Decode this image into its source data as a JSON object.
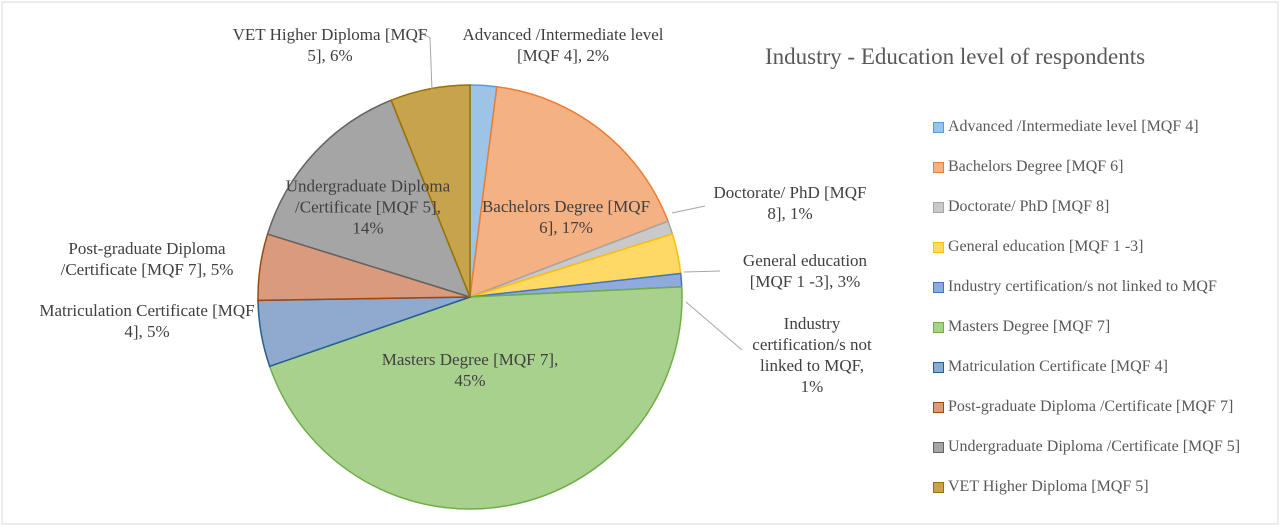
{
  "chart_data": {
    "type": "pie",
    "title": "Industry - Education level of respondents",
    "categories": [
      "Advanced /Intermediate level [MQF 4]",
      "Bachelors Degree [MQF 6]",
      "Doctorate/ PhD [MQF 8]",
      "General education [MQF 1 -3]",
      "Industry certification/s not linked to MQF",
      "Masters  Degree [MQF 7]",
      "Matriculation Certificate [MQF 4]",
      "Post-graduate Diploma /Certificate [MQF 7]",
      "Undergraduate Diploma /Certificate [MQF 5]",
      "VET Higher Diploma [MQF 5]"
    ],
    "values": [
      2,
      17,
      1,
      3,
      1,
      45,
      5,
      5,
      14,
      6
    ],
    "value_labels": [
      "Advanced /Intermediate level [MQF 4], 2%",
      "Bachelors Degree [MQF 6], 17%",
      "Doctorate/ PhD [MQF 8], 1%",
      "General education [MQF 1 -3], 3%",
      "Industry certification/s not linked to MQF, 1%",
      "Masters  Degree [MQF 7], 45%",
      "Matriculation Certificate [MQF 4], 5%",
      "Post-graduate Diploma /Certificate [MQF 7], 5%",
      "Undergraduate Diploma /Certificate [MQF 5], 14%",
      "VET Higher Diploma [MQF 5], 6%"
    ],
    "colors": [
      "#9dc3e6",
      "#f4b183",
      "#c9c9c9",
      "#ffd966",
      "#8faadc",
      "#a9d18e",
      "#8fa9cf",
      "#d99a7e",
      "#a5a5a5",
      "#c7a44b"
    ],
    "border_colors": [
      "#5b9bd5",
      "#ed7d31",
      "#a5a5a5",
      "#ffc000",
      "#4472c4",
      "#70ad47",
      "#255e91",
      "#9e480e",
      "#636363",
      "#997300"
    ],
    "legend": "right"
  }
}
